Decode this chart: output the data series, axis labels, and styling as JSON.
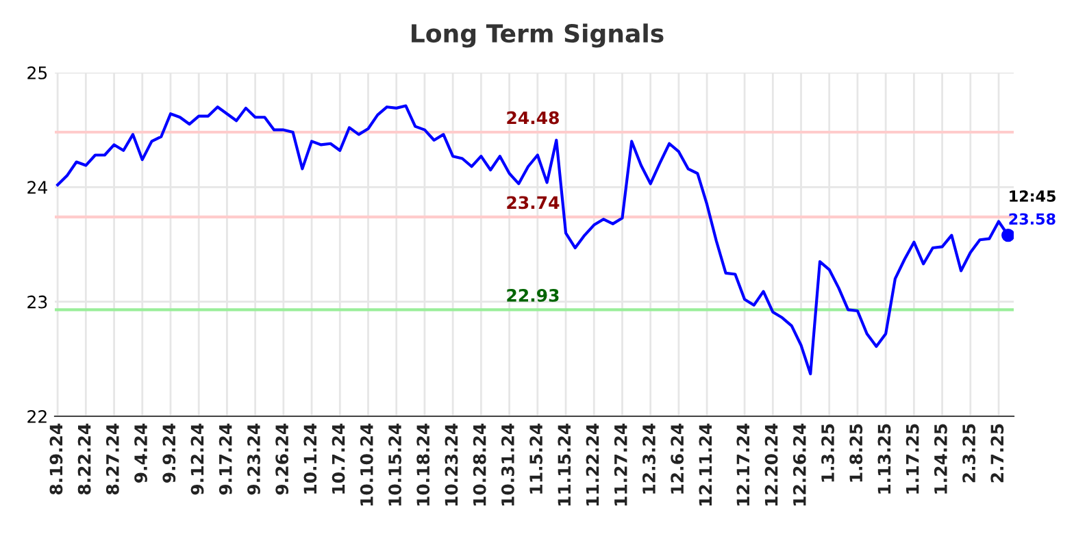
{
  "chart_data": {
    "type": "line",
    "title": "Long Term Signals",
    "categories": [
      "8.19.24",
      null,
      null,
      "8.22.24",
      null,
      null,
      "8.27.24",
      null,
      null,
      "9.4.24",
      null,
      null,
      "9.9.24",
      null,
      null,
      "9.12.24",
      null,
      null,
      "9.17.24",
      null,
      null,
      "9.23.24",
      null,
      null,
      "9.26.24",
      null,
      null,
      "10.1.24",
      null,
      null,
      "10.7.24",
      null,
      null,
      "10.10.24",
      null,
      null,
      "10.15.24",
      null,
      null,
      "10.18.24",
      null,
      null,
      "10.23.24",
      null,
      null,
      "10.28.24",
      null,
      null,
      "10.31.24",
      null,
      null,
      "11.5.24",
      null,
      null,
      "11.15.24",
      null,
      null,
      "11.22.24",
      null,
      null,
      "11.27.24",
      null,
      null,
      "12.3.24",
      null,
      null,
      "12.6.24",
      null,
      null,
      "12.11.24",
      null,
      null,
      null,
      "12.17.24",
      null,
      null,
      "12.20.24",
      null,
      null,
      "12.26.24",
      null,
      null,
      "1.3.25",
      null,
      null,
      "1.8.25",
      null,
      null,
      "1.13.25",
      null,
      null,
      "1.17.25",
      null,
      null,
      "1.24.25",
      null,
      null,
      "2.3.25",
      null,
      null,
      "2.7.25",
      null
    ],
    "series": [
      {
        "color": "#0000ff",
        "values": [
          24.02,
          24.1,
          24.22,
          24.19,
          24.28,
          24.28,
          24.37,
          24.32,
          24.46,
          24.24,
          24.4,
          24.44,
          24.64,
          24.61,
          24.55,
          24.62,
          24.62,
          24.7,
          24.64,
          24.58,
          24.69,
          24.61,
          24.61,
          24.5,
          24.5,
          24.48,
          24.16,
          24.4,
          24.37,
          24.38,
          24.32,
          24.52,
          24.46,
          24.51,
          24.63,
          24.7,
          24.69,
          24.71,
          24.53,
          24.5,
          24.41,
          24.46,
          24.27,
          24.25,
          24.18,
          24.27,
          24.15,
          24.27,
          24.12,
          24.03,
          24.18,
          24.28,
          24.04,
          24.41,
          23.6,
          23.47,
          23.58,
          23.67,
          23.72,
          23.68,
          23.73,
          24.4,
          24.19,
          24.03,
          24.21,
          24.38,
          24.31,
          24.16,
          24.12,
          23.85,
          23.53,
          23.25,
          23.24,
          23.02,
          22.97,
          23.09,
          22.91,
          22.86,
          22.79,
          22.62,
          22.37,
          23.35,
          23.28,
          23.12,
          22.93,
          22.92,
          22.72,
          22.61,
          22.72,
          23.2,
          23.37,
          23.52,
          23.33,
          23.47,
          23.48,
          23.58,
          23.27,
          23.43,
          23.54,
          23.55,
          23.7,
          23.58
        ]
      },
      {
        "type": "scatter",
        "marker": "circle",
        "color": "#0000ff",
        "values": [
          null,
          null,
          null,
          null,
          null,
          null,
          null,
          null,
          null,
          null,
          null,
          null,
          null,
          null,
          null,
          null,
          null,
          null,
          null,
          null,
          null,
          null,
          null,
          null,
          null,
          null,
          null,
          null,
          null,
          null,
          null,
          null,
          null,
          null,
          null,
          null,
          null,
          null,
          null,
          null,
          null,
          null,
          null,
          null,
          null,
          null,
          null,
          null,
          null,
          null,
          null,
          null,
          null,
          null,
          null,
          null,
          null,
          null,
          null,
          null,
          null,
          null,
          null,
          null,
          null,
          null,
          null,
          null,
          null,
          null,
          null,
          null,
          null,
          null,
          null,
          null,
          null,
          null,
          null,
          null,
          null,
          null,
          null,
          null,
          null,
          null,
          null,
          null,
          null,
          null,
          null,
          null,
          null,
          null,
          null,
          null,
          null,
          null,
          null,
          null,
          null,
          23.58
        ]
      }
    ],
    "ylim": [
      22,
      25
    ],
    "yticks": [
      22,
      23,
      24,
      25
    ],
    "ref_lines": [
      {
        "axis": "y",
        "value": 24.48,
        "label": "24.48",
        "color": "#ffcccc"
      },
      {
        "axis": "y",
        "value": 23.74,
        "label": "23.74",
        "color": "#ffcccc"
      },
      {
        "axis": "y",
        "value": 22.93,
        "label": "22.93",
        "color": "#99ee99"
      }
    ],
    "annotations": [
      "12:45",
      "23.58"
    ],
    "grid": true,
    "line_style": "solid",
    "marker": "none"
  }
}
